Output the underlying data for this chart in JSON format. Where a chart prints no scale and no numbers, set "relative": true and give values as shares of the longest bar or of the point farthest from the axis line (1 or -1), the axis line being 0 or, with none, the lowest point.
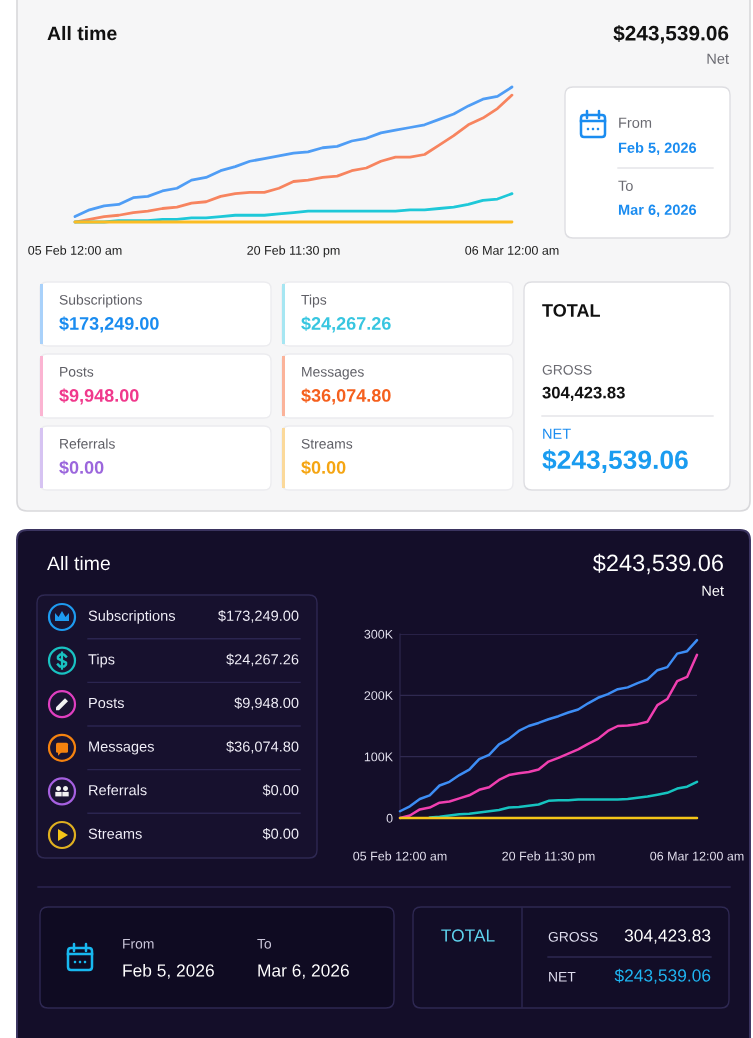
{
  "chart_data": [
    {
      "type": "line",
      "title": "All time",
      "annotations": [
        "$243,539.06",
        "Net"
      ],
      "relative": true,
      "tick_labels": "x",
      "categories": [
        "05 Feb 12:00 am",
        null,
        null,
        null,
        null,
        null,
        null,
        null,
        null,
        null,
        null,
        null,
        null,
        null,
        null,
        "20 Feb 11:30 pm",
        null,
        null,
        null,
        null,
        null,
        null,
        null,
        null,
        null,
        null,
        null,
        null,
        null,
        null,
        "06 Mar 12:00 am"
      ],
      "series": [
        {
          "color": "#4f9df5",
          "values": [
            0.04,
            0.09,
            0.12,
            0.13,
            0.18,
            0.19,
            0.23,
            0.25,
            0.31,
            0.33,
            0.38,
            0.41,
            0.45,
            0.47,
            0.49,
            0.51,
            0.52,
            0.55,
            0.56,
            0.6,
            0.62,
            0.66,
            0.68,
            0.7,
            0.72,
            0.76,
            0.8,
            0.86,
            0.91,
            0.93,
            1
          ]
        },
        {
          "color": "#f7845f",
          "values": [
            0,
            0.02,
            0.04,
            0.05,
            0.07,
            0.08,
            0.1,
            0.11,
            0.14,
            0.15,
            0.19,
            0.21,
            0.22,
            0.22,
            0.25,
            0.3,
            0.31,
            0.33,
            0.34,
            0.38,
            0.4,
            0.45,
            0.48,
            0.48,
            0.5,
            0.57,
            0.64,
            0.72,
            0.77,
            0.84,
            0.94
          ]
        },
        {
          "color": "#1ec8d8",
          "values": [
            0,
            0,
            0,
            0.01,
            0.01,
            0.01,
            0.02,
            0.02,
            0.03,
            0.03,
            0.04,
            0.05,
            0.05,
            0.05,
            0.06,
            0.07,
            0.08,
            0.08,
            0.08,
            0.08,
            0.08,
            0.08,
            0.08,
            0.09,
            0.09,
            0.1,
            0.11,
            0.13,
            0.16,
            0.17,
            0.21
          ]
        },
        {
          "color": "#fbbc23",
          "values": [
            0,
            0,
            0,
            0,
            0,
            0,
            0,
            0,
            0,
            0,
            0,
            0,
            0,
            0,
            0,
            0,
            0,
            0,
            0,
            0,
            0,
            0,
            0,
            0,
            0,
            0,
            0,
            0,
            0,
            0,
            0
          ]
        }
      ]
    },
    {
      "type": "other",
      "annotations": [
        "From",
        "Feb 5, 2026",
        "To",
        "Mar 6, 2026"
      ]
    },
    {
      "type": "other",
      "annotations": [
        "Subscriptions",
        "$173,249.00",
        "Tips",
        "$24,267.26",
        "Posts",
        "$9,948.00",
        "Messages",
        "$36,074.80",
        "Referrals",
        "$0.00",
        "Streams",
        "$0.00"
      ]
    },
    {
      "type": "other",
      "title": "TOTAL",
      "annotations": [
        "GROSS",
        "304,423.83",
        "NET",
        "$243,539.06"
      ]
    },
    {
      "type": "other",
      "title": "All time",
      "annotations": [
        "Subscriptions",
        "$173,249.00",
        "Tips",
        "$24,267.26",
        "Posts",
        "$9,948.00",
        "Messages",
        "$36,074.80",
        "Referrals",
        "$0.00",
        "Streams",
        "$0.00"
      ]
    },
    {
      "type": "line",
      "annotations": [
        "$243,539.06",
        "Net"
      ],
      "ylim": [
        0,
        300000
      ],
      "yticks": [
        0,
        {
          "value": 100000,
          "label": "100K"
        },
        {
          "value": 200000,
          "label": "200K"
        },
        {
          "value": 300000,
          "label": "300K"
        }
      ],
      "grid": "y",
      "categories": [
        "05 Feb 12:00 am",
        null,
        null,
        null,
        null,
        null,
        null,
        null,
        null,
        null,
        null,
        null,
        null,
        null,
        null,
        "20 Feb 11:30 pm",
        null,
        null,
        null,
        null,
        null,
        null,
        null,
        null,
        null,
        null,
        null,
        null,
        null,
        null,
        "06 Mar 12:00 am"
      ],
      "series": [
        {
          "color": "#3d8df5",
          "values": [
            11000,
            19000,
            31000,
            37000,
            53000,
            59000,
            70000,
            79000,
            96000,
            103000,
            120000,
            129000,
            142000,
            150000,
            155000,
            161000,
            166000,
            172000,
            177000,
            187000,
            196000,
            202000,
            210000,
            213000,
            220000,
            226000,
            241000,
            246000,
            268000,
            272000,
            290000
          ]
        },
        {
          "color": "#f03fb0",
          "values": [
            0,
            4000,
            14000,
            17000,
            25000,
            27000,
            32000,
            37000,
            46000,
            50000,
            62000,
            70000,
            73000,
            75000,
            79000,
            92000,
            98000,
            105000,
            112000,
            121000,
            129000,
            142000,
            150000,
            151000,
            153000,
            157000,
            184000,
            194000,
            223000,
            230000,
            266000
          ]
        },
        {
          "color": "#16c3c0",
          "values": [
            null,
            null,
            null,
            1000,
            2000,
            4000,
            6000,
            7000,
            9000,
            11000,
            13000,
            17000,
            18000,
            20000,
            22000,
            28000,
            29000,
            29000,
            30000,
            30000,
            30000,
            30000,
            30000,
            31000,
            33000,
            35000,
            38000,
            41000,
            48000,
            51000,
            59000
          ]
        },
        {
          "color": "#f5c518",
          "values": [
            0,
            0,
            0,
            0,
            0,
            0,
            0,
            0,
            0,
            0,
            0,
            0,
            0,
            0,
            0,
            0,
            0,
            0,
            0,
            0,
            0,
            0,
            0,
            0,
            0,
            0,
            0,
            0,
            0,
            0,
            0
          ]
        }
      ]
    },
    {
      "type": "other",
      "annotations": [
        "From",
        "Feb 5, 2026",
        "To",
        "Mar 6, 2026"
      ]
    },
    {
      "type": "other",
      "title": "TOTAL",
      "annotations": [
        "GROSS",
        "304,423.83",
        "NET",
        "$243,539.06"
      ]
    }
  ]
}
